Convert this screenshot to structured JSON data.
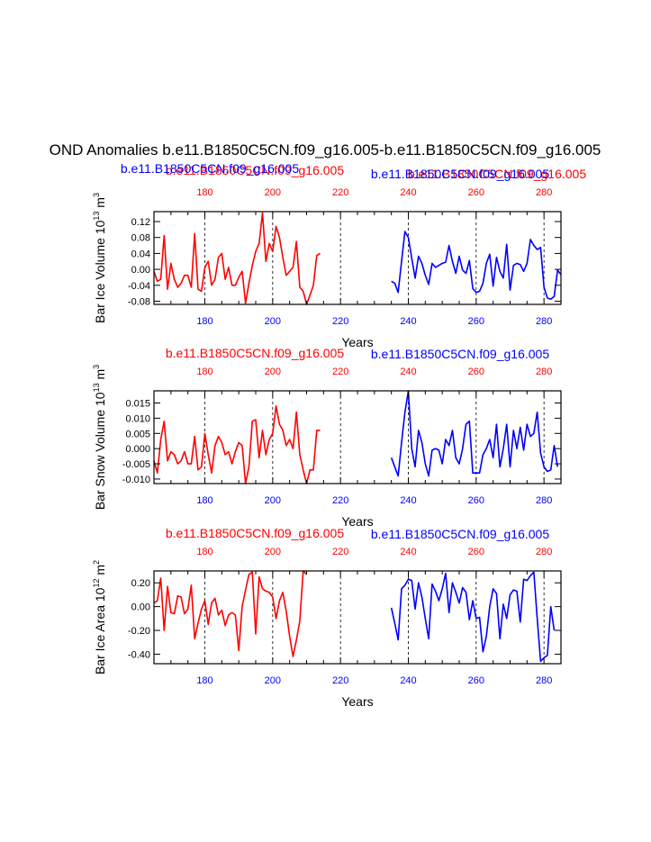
{
  "figure_title": "OND Anomalies b.e11.B1850C5CN.f09_g16.005-b.e11.B1850C5CN.f09_g16.005",
  "colors": {
    "red": "#ff0000",
    "blue": "#0000ff",
    "black": "#000000"
  },
  "chart_data": [
    {
      "type": "line",
      "top_labels": {
        "red": [
          "b.e11.B1850C5CN.f09_g16.005",
          "b.e11.B1850C5CN.f09_g16.005"
        ],
        "blue": [
          "b.e11.B1850C5CN.f09_g16.005",
          "b.e11.B1850C5CN.f09_g16.005"
        ]
      },
      "ylabel_main": "Bar Ice Volume 10",
      "ylabel_exp1": "13",
      "ylabel_unit": " m",
      "ylabel_exp2": "3",
      "xlabel": "Years",
      "xlim": [
        165,
        285
      ],
      "ylim": [
        -0.088,
        0.145
      ],
      "yticks": [
        -0.08,
        -0.04,
        0.0,
        0.04,
        0.08,
        0.12
      ],
      "ytick_labels": [
        "-0.08",
        "-0.04",
        "0.00",
        "0.04",
        "0.08",
        "0.12"
      ],
      "xticks": [
        180,
        200,
        220,
        240,
        260,
        280
      ],
      "xtick_labels": [
        "180",
        "200",
        "220",
        "240",
        "260",
        "280"
      ],
      "series": [
        {
          "name": "b.e11.B1850C5CN.f09_g16.005",
          "color": "red",
          "x_start": 165,
          "values": [
            -0.005,
            -0.03,
            -0.025,
            0.085,
            -0.05,
            0.015,
            -0.025,
            -0.045,
            -0.035,
            -0.015,
            -0.015,
            -0.045,
            0.09,
            -0.05,
            -0.055,
            0.005,
            0.02,
            -0.04,
            -0.025,
            0.03,
            0.04,
            -0.025,
            0.005,
            -0.04,
            -0.04,
            -0.02,
            -0.005,
            -0.085,
            -0.035,
            0.01,
            0.045,
            0.065,
            0.142,
            0.02,
            0.065,
            0.045,
            0.108,
            0.08,
            0.03,
            -0.015,
            -0.005,
            0.005,
            0.07,
            -0.045,
            -0.055,
            -0.088,
            -0.065,
            -0.04,
            0.035,
            0.04
          ]
        },
        {
          "name": "b.e11.B1850C5CN.f09_g16.005",
          "color": "blue",
          "x_start": 235,
          "values": [
            -0.03,
            -0.035,
            -0.058,
            0.02,
            0.095,
            0.08,
            0.028,
            -0.022,
            0.033,
            0.015,
            -0.015,
            -0.038,
            0.015,
            0.005,
            0.01,
            0.015,
            0.018,
            0.06,
            0.02,
            -0.01,
            0.033,
            -0.002,
            -0.01,
            0.022,
            -0.048,
            -0.058,
            -0.055,
            -0.035,
            0.015,
            0.038,
            -0.042,
            0.03,
            -0.005,
            -0.022,
            0.063,
            -0.052,
            0.01,
            0.015,
            0.012,
            -0.005,
            0.015,
            0.075,
            0.06,
            0.05,
            0.055,
            -0.045,
            -0.072,
            -0.075,
            -0.068,
            -0.002,
            -0.013
          ]
        }
      ]
    },
    {
      "type": "line",
      "top_labels": {
        "red": [
          "b.e11.B1850C5CN.f09_g16.005"
        ],
        "blue": [
          "b.e11.B1850C5CN.f09_g16.005"
        ]
      },
      "ylabel_main": "Bar Snow Volume 10",
      "ylabel_exp1": "13",
      "ylabel_unit": " m",
      "ylabel_exp2": "3",
      "xlabel": "Years",
      "xlim": [
        165,
        285
      ],
      "ylim": [
        -0.0115,
        0.019
      ],
      "yticks": [
        -0.01,
        -0.005,
        0.0,
        0.005,
        0.01,
        0.015
      ],
      "ytick_labels": [
        "-0.010",
        "-0.005",
        "0.000",
        "0.005",
        "0.010",
        "0.015"
      ],
      "xticks": [
        180,
        200,
        220,
        240,
        260,
        280
      ],
      "xtick_labels": [
        "180",
        "200",
        "220",
        "240",
        "260",
        "280"
      ],
      "series": [
        {
          "name": "b.e11.B1850C5CN.f09_g16.005",
          "color": "red",
          "x_start": 165,
          "values": [
            -0.004,
            -0.008,
            0.003,
            0.009,
            -0.004,
            -0.001,
            -0.002,
            -0.005,
            -0.004,
            -0.001,
            -0.005,
            -0.005,
            0.004,
            -0.007,
            -0.006,
            0.005,
            -0.002,
            -0.008,
            0.001,
            0.004,
            0.002,
            -0.002,
            -0.001,
            -0.005,
            -0.001,
            0.002,
            0.001,
            -0.0115,
            -0.006,
            0.009,
            0.0095,
            -0.003,
            0.006,
            -0.002,
            0.003,
            0.005,
            0.014,
            0.008,
            0.006,
            0.001,
            0.003,
            0.0,
            0.012,
            -0.002,
            -0.007,
            -0.0115,
            -0.007,
            -0.007,
            0.006,
            0.006
          ]
        },
        {
          "name": "b.e11.B1850C5CN.f09_g16.005",
          "color": "blue",
          "x_start": 235,
          "values": [
            -0.003,
            -0.006,
            -0.009,
            0.002,
            0.012,
            0.019,
            0.0,
            -0.006,
            0.006,
            0.002,
            -0.005,
            -0.009,
            -0.0005,
            0.0,
            -0.0005,
            -0.005,
            0.003,
            0.001,
            0.006,
            -0.003,
            -0.005,
            0.0,
            0.008,
            0.009,
            -0.008,
            -0.008,
            -0.008,
            -0.002,
            0.0,
            0.003,
            -0.003,
            0.008,
            -0.006,
            0.0,
            0.008,
            -0.006,
            0.006,
            0.0,
            0.007,
            -0.0005,
            0.008,
            0.004,
            0.005,
            0.012,
            -0.0015,
            -0.006,
            -0.0075,
            -0.007,
            0.001,
            -0.006
          ]
        }
      ]
    },
    {
      "type": "line",
      "top_labels": {
        "red": [
          "b.e11.B1850C5CN.f09_g16.005"
        ],
        "blue": [
          "b.e11.B1850C5CN.f09_g16.005"
        ]
      },
      "ylabel_main": "Bar Ice Area 10",
      "ylabel_exp1": "12",
      "ylabel_unit": " m",
      "ylabel_exp2": "2",
      "xlabel": "Years",
      "xlim": [
        165,
        285
      ],
      "ylim": [
        -0.48,
        0.3
      ],
      "yticks": [
        -0.4,
        -0.2,
        0.0,
        0.2
      ],
      "ytick_labels": [
        "-0.40",
        "-0.20",
        "0.00",
        "0.20"
      ],
      "xticks": [
        180,
        200,
        220,
        240,
        260,
        280
      ],
      "xtick_labels": [
        "180",
        "200",
        "220",
        "240",
        "260",
        "280"
      ],
      "series": [
        {
          "name": "b.e11.B1850C5CN.f09_g16.005",
          "color": "red",
          "x_start": 165,
          "values": [
            0.03,
            0.05,
            0.24,
            -0.2,
            0.17,
            -0.05,
            -0.06,
            0.09,
            0.08,
            -0.06,
            -0.02,
            0.18,
            -0.27,
            -0.14,
            -0.02,
            0.05,
            -0.15,
            0.03,
            0.07,
            -0.07,
            -0.03,
            -0.16,
            -0.07,
            -0.05,
            -0.07,
            -0.37,
            0.0,
            0.14,
            0.27,
            0.29,
            -0.23,
            0.25,
            0.15,
            0.13,
            0.12,
            0.08,
            -0.1,
            0.05,
            0.12,
            -0.04,
            -0.25,
            -0.42,
            -0.28,
            -0.12,
            0.3,
            0.27
          ]
        },
        {
          "name": "b.e11.B1850C5CN.f09_g16.005",
          "color": "blue",
          "x_start": 235,
          "values": [
            -0.01,
            -0.14,
            -0.28,
            0.15,
            0.18,
            0.23,
            0.22,
            -0.02,
            0.2,
            0.08,
            -0.1,
            -0.27,
            0.19,
            0.13,
            0.05,
            0.15,
            0.28,
            -0.05,
            0.2,
            0.12,
            0.03,
            0.16,
            0.12,
            -0.11,
            0.05,
            -0.1,
            -0.09,
            -0.38,
            -0.25,
            0.0,
            0.15,
            0.11,
            -0.27,
            0.02,
            -0.1,
            0.1,
            0.14,
            0.13,
            -0.13,
            0.23,
            0.22,
            0.26,
            0.29,
            -0.1,
            -0.46,
            -0.43,
            -0.41,
            0.0,
            -0.2
          ]
        }
      ]
    }
  ]
}
